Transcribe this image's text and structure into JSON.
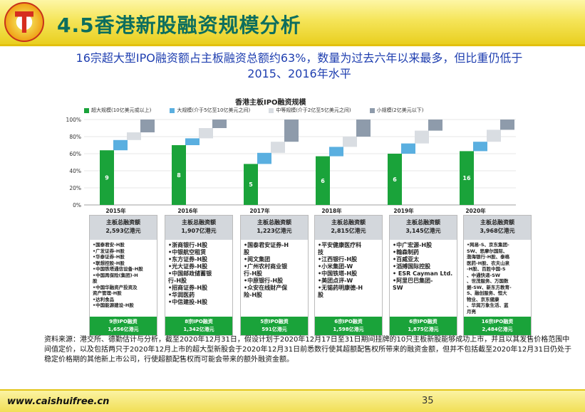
{
  "header": {
    "title": "4.5香港新股融资规模分析"
  },
  "subtitle": "16宗超大型IPO融资额占主板融资总额约63%，数量为过去六年以来最多，但比重仍低于2015、2016年水平",
  "chart_data": {
    "type": "bar",
    "title": "香港主板IPO融资规模",
    "categories": [
      "2015年",
      "2016年",
      "2017年",
      "2018年",
      "2019年",
      "2020年"
    ],
    "ylim": [
      0,
      100
    ],
    "yticks": [
      "0%",
      "20%",
      "40%",
      "60%",
      "80%",
      "100%"
    ],
    "grid": true,
    "legend_position": "top",
    "series": [
      {
        "name": "超大规模(10亿美元或以上)",
        "color": "#1aa33a",
        "values": [
          64,
          70,
          48,
          57,
          60,
          63
        ],
        "labels": [
          "9",
          "8",
          "5",
          "6",
          "6",
          "16"
        ]
      },
      {
        "name": "大规模(介于5亿至10亿美元之间)",
        "color": "#5aafe0",
        "values": [
          12,
          8,
          13,
          11,
          12,
          11
        ]
      },
      {
        "name": "中等规模(介于2亿至5亿美元之间)",
        "color": "#d9dde2",
        "values": [
          9,
          12,
          13,
          12,
          15,
          14
        ]
      },
      {
        "name": "小规模(2亿美元以下)",
        "color": "#8e9bab",
        "values": [
          15,
          10,
          26,
          20,
          13,
          12
        ]
      }
    ]
  },
  "columns": [
    {
      "head_title": "主板总融资额",
      "head_amount": "2,593亿港元",
      "items": [
        "•国泰君安-H股",
        "•广发证券-H股",
        "•华泰证券-H股",
        "•联想控股-H股",
        "•中国铁塔通信设备-H股",
        "•中国再保险(集团)-H",
        "  股",
        "•中国华融资产投资及",
        "  资产管理-H股",
        "•达利食品",
        "•中国能源建设-H股"
      ],
      "foot_count": "9宗IPO融资",
      "foot_amount": "1,656亿港元"
    },
    {
      "head_title": "主板总融资额",
      "head_amount": "1,907亿港元",
      "items": [
        "•浙商银行-H股",
        "•中银航空租赁",
        "•东方证券-H股",
        "•光大证券-H股",
        "•中国邮政储蓄银",
        "  行-H股",
        "•招商证券-H股",
        "•华润医药",
        "•中信建投-H股"
      ],
      "foot_count": "8宗IPO融资",
      "foot_amount": "1,342亿港元"
    },
    {
      "head_title": "主板总融资额",
      "head_amount": "1,223亿港元",
      "items": [
        "•国泰君安证券-H",
        "  股",
        "•阅文集团",
        "•广州农村商业银",
        "  行-H股",
        "•中原银行-H股",
        "•众安在线财产保",
        "  险-H股"
      ],
      "foot_count": "5宗IPO融资",
      "foot_amount": "591亿港元"
    },
    {
      "head_title": "主板总融资额",
      "head_amount": "2,815亿港元",
      "items": [
        "•平安健康医疗科",
        "  技",
        "•江西银行-H股",
        "•小米集团-W",
        "•中国铁塔-H股",
        "•美团点评-W",
        "•无锡药明康德-H",
        "  股"
      ],
      "foot_count": "6宗IPO融资",
      "foot_amount": "1,598亿港元"
    },
    {
      "head_title": "主板总融资额",
      "head_amount": "3,145亿港元",
      "items": [
        "•中广宏源-H股",
        "•翰森制药",
        "•百威亚太",
        "•滔搏国际控股",
        "• ESR Cayman Ltd.",
        "•阿里巴巴集团-",
        "  SW"
      ],
      "foot_count": "6宗IPO融资",
      "foot_amount": "1,875亿港元"
    },
    {
      "head_title": "主板总融资额",
      "head_amount": "3,968亿港元",
      "items": [
        "•网易-S、京东集团-",
        "  SW、思摩尔国际、",
        "  渤海银行-H股、泰格",
        "  医药-H股、农夫山泉",
        "  -H股、百胜中国-S",
        "  、中通快递-SW",
        "  、世茂服务、万国数",
        "  据-SW、新东方教育-",
        "  S、融创服务、恒大",
        "  物业、京东健康",
        "  、华润万象生活、蓝",
        "  月亮"
      ],
      "foot_count": "16宗IPO融资",
      "foot_amount": "2,484亿港元"
    }
  ],
  "source": "资料来源：港交所、德勤估计与分析，截至2020年12月31日，假设计划于2020年12月17日至31日期间挂牌的10只主板新股能够成功上市，并且以其发售价格范围中间值定价，以及包括两只于2020年12月上市的超大型新股会于2020年12月31日前悉数行使其超额配售权所带来的融资金额，但并不包括截至2020年12月31日仍处于稳定价格期的其他新上市公司，行使超额配售权而可能会带来的额外融资金额。",
  "footer": {
    "url": "www.caishuifree.cn",
    "page": "35"
  }
}
